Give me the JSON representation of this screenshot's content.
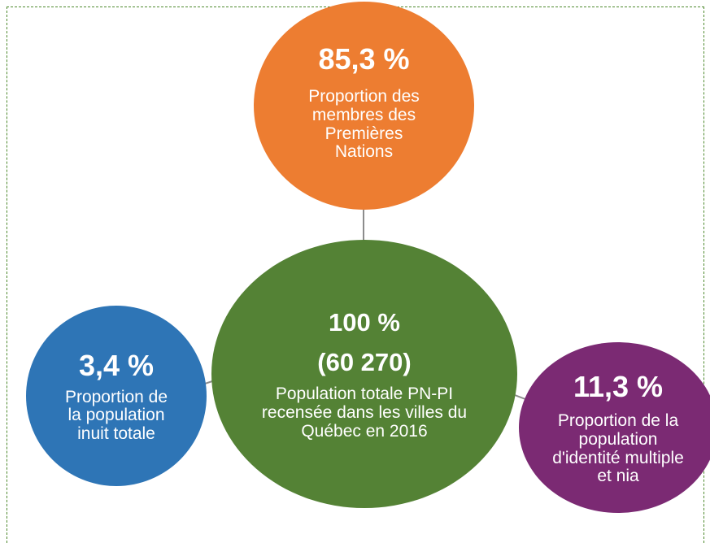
{
  "nodes": [
    {
      "value": "85,3 %",
      "label": "Proportion des membres des Premières Nations"
    },
    {
      "value": "100 %",
      "count": "(60 270)",
      "label": "Population totale PN-PI recensée dans les villes du Québec en 2016"
    },
    {
      "value": "3,4 %",
      "label": "Proportion de la population inuit totale"
    },
    {
      "value": "11,3 %",
      "label": "Proportion de la population d'identité multiple et nia"
    }
  ]
}
